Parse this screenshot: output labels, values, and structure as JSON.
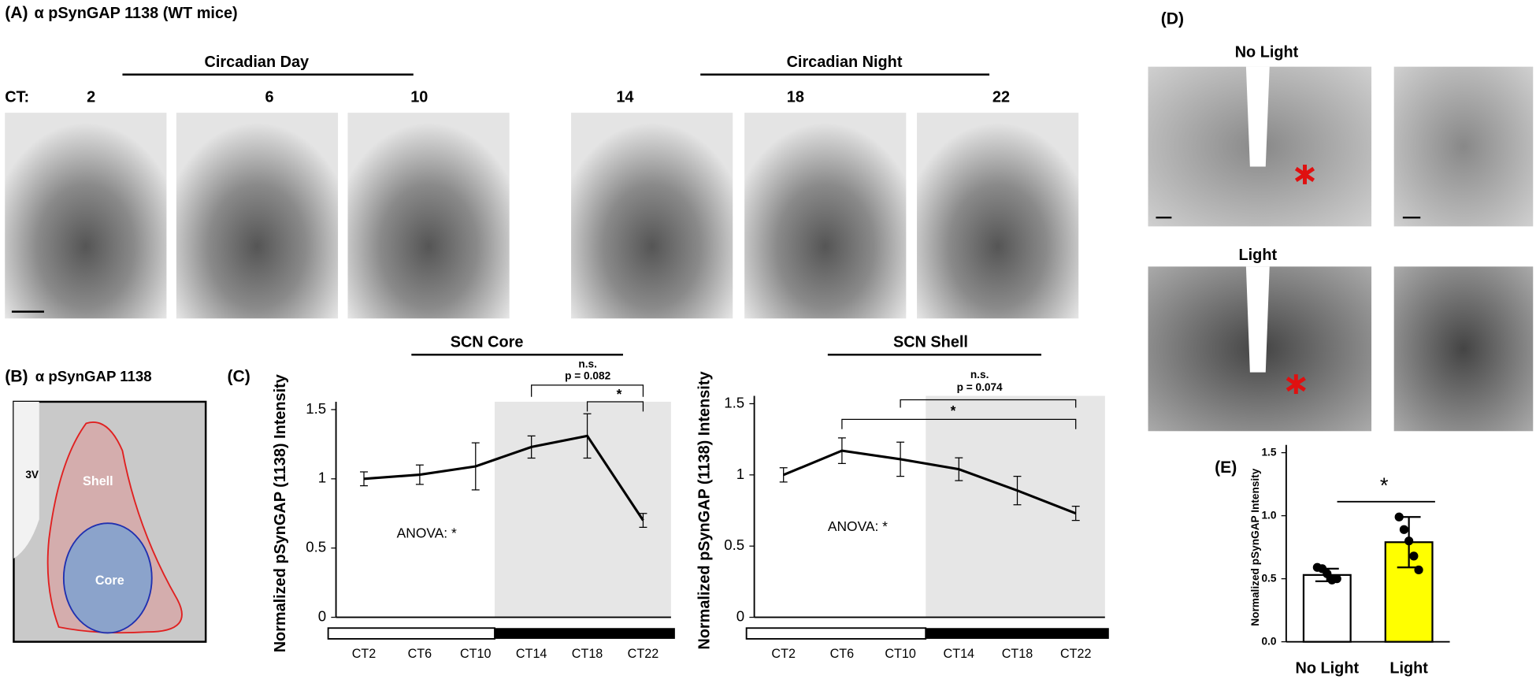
{
  "panel_a": {
    "label": "(A)",
    "title": "α pSynGAP 1138 (WT mice)",
    "ct_label": "CT:",
    "day_label": "Circadian Day",
    "night_label": "Circadian Night",
    "times": [
      "2",
      "6",
      "10",
      "14",
      "18",
      "22"
    ]
  },
  "panel_b": {
    "label": "(B)",
    "title": "α pSynGAP 1138",
    "regions": [
      "3V",
      "Shell",
      "Core"
    ]
  },
  "panel_c": {
    "label": "(C)"
  },
  "panel_d": {
    "label": "(D)",
    "conditions": [
      "No Light",
      "Light"
    ]
  },
  "panel_e": {
    "label": "(E)"
  },
  "chart_data": [
    {
      "type": "line",
      "title": "SCN Core",
      "y_label": "Normalized pSynGAP (1138) Intensity",
      "categories": [
        "CT2",
        "CT6",
        "CT10",
        "CT14",
        "CT18",
        "CT22"
      ],
      "values": [
        1.0,
        1.03,
        1.09,
        1.23,
        1.31,
        0.7
      ],
      "errors": [
        0.05,
        0.07,
        0.17,
        0.08,
        0.16,
        0.05
      ],
      "color": "#000000",
      "ylim": [
        0,
        1.5
      ],
      "yticks": [
        0,
        0.5,
        1,
        1.5
      ],
      "annotations": [
        "n.s.",
        "p = 0.082",
        "*",
        "ANOVA: *"
      ]
    },
    {
      "type": "line",
      "title": "SCN Shell",
      "y_label": "Normalized pSynGAP (1138) Intensity",
      "categories": [
        "CT2",
        "CT6",
        "CT10",
        "CT14",
        "CT18",
        "CT22"
      ],
      "values": [
        1.0,
        1.17,
        1.11,
        1.04,
        0.89,
        0.73
      ],
      "errors": [
        0.05,
        0.09,
        0.12,
        0.08,
        0.1,
        0.05
      ],
      "color": "#000000",
      "ylim": [
        0,
        1.5
      ],
      "yticks": [
        0,
        0.5,
        1,
        1.5
      ],
      "annotations": [
        "n.s.",
        "p = 0.074",
        "*",
        "ANOVA: *"
      ]
    },
    {
      "type": "bar",
      "y_label": "Normalized pSynGAP Intensity",
      "categories": [
        "No Light",
        "Light"
      ],
      "values": [
        0.53,
        0.79
      ],
      "errors": [
        0.05,
        0.2
      ],
      "colors": [
        "#ffffff",
        "#ffff00"
      ],
      "points": [
        [
          0.59,
          0.58,
          0.54,
          0.49,
          0.5
        ],
        [
          0.99,
          0.89,
          0.8,
          0.68,
          0.57
        ]
      ],
      "ylim": [
        0,
        1.5
      ],
      "yticks": [
        {
          "value": 0,
          "label": "0.0"
        },
        0.5,
        {
          "value": 1,
          "label": "1.0"
        },
        1.5
      ],
      "annotations": [
        "*"
      ]
    }
  ]
}
